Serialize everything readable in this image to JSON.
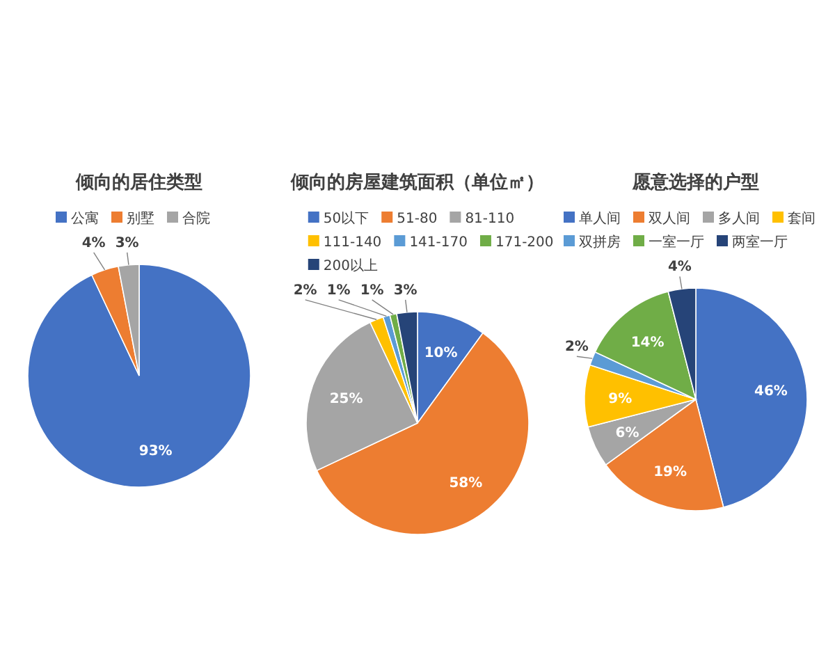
{
  "chart_data": [
    {
      "type": "pie",
      "title": "倾向的居住类型",
      "legend": "top",
      "categories": [
        "公寓",
        "别墅",
        "合院"
      ],
      "values": [
        93,
        4,
        3
      ],
      "value_labels": [
        "93%",
        "4%",
        "3%"
      ],
      "colors": [
        "#4472c4",
        "#ed7d31",
        "#a5a5a5"
      ]
    },
    {
      "type": "pie",
      "title": "倾向的房屋建筑面积（单位㎡）",
      "legend": "top",
      "categories": [
        "50以下",
        "51-80",
        "81-110",
        "111-140",
        "141-170",
        "171-200",
        "200以上"
      ],
      "values": [
        10,
        58,
        25,
        2,
        1,
        1,
        3
      ],
      "value_labels": [
        "10%",
        "58%",
        "25%",
        "2%",
        "1%",
        "1%",
        "3%"
      ],
      "colors": [
        "#4472c4",
        "#ed7d31",
        "#a5a5a5",
        "#ffc000",
        "#5b9bd5",
        "#70ad47",
        "#264478"
      ]
    },
    {
      "type": "pie",
      "title": "愿意选择的户型",
      "legend": "top",
      "categories": [
        "单人间",
        "双人间",
        "多人间",
        "套间",
        "双拼房",
        "一室一厅",
        "两室一厅"
      ],
      "values": [
        46,
        19,
        6,
        9,
        2,
        14,
        4
      ],
      "value_labels": [
        "46%",
        "19%",
        "6%",
        "9%",
        "2%",
        "14%",
        "4%"
      ],
      "colors": [
        "#4472c4",
        "#ed7d31",
        "#a5a5a5",
        "#ffc000",
        "#5b9bd5",
        "#70ad47",
        "#264478"
      ]
    }
  ]
}
